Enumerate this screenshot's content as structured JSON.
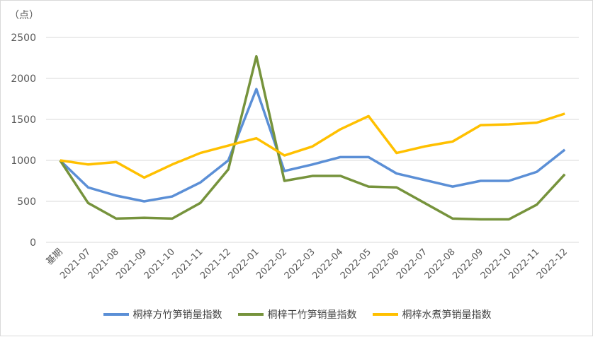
{
  "chart_data": {
    "type": "line",
    "unit_label": "（点）",
    "categories": [
      "基期",
      "2021-07",
      "2021-08",
      "2021-09",
      "2021-10",
      "2021-11",
      "2021-12",
      "2022-01",
      "2022-02",
      "2022-03",
      "2022-04",
      "2022-05",
      "2022-06",
      "2022-07",
      "2022-08",
      "2022-09",
      "2022-10",
      "2022-11",
      "2022-12"
    ],
    "ylim": [
      0,
      2500
    ],
    "yticks": [
      0,
      500,
      1000,
      1500,
      2000,
      2500
    ],
    "grid": true,
    "legend_position": "bottom",
    "series": [
      {
        "name": "桐梓方竹笋销量指数",
        "color": "#5B8FD6",
        "values": [
          1000,
          670,
          570,
          500,
          560,
          730,
          1000,
          1870,
          870,
          950,
          1040,
          1040,
          840,
          760,
          680,
          750,
          750,
          860,
          1130
        ]
      },
      {
        "name": "桐梓干竹笋销量指数",
        "color": "#76933C",
        "values": [
          1000,
          480,
          290,
          300,
          290,
          480,
          890,
          2270,
          750,
          810,
          810,
          680,
          670,
          480,
          290,
          280,
          280,
          460,
          830
        ]
      },
      {
        "name": "桐梓水煮笋销量指数",
        "color": "#FFC000",
        "values": [
          1000,
          950,
          980,
          790,
          950,
          1090,
          1180,
          1270,
          1060,
          1170,
          1380,
          1540,
          1090,
          1170,
          1230,
          1430,
          1440,
          1460,
          1570
        ]
      }
    ]
  }
}
